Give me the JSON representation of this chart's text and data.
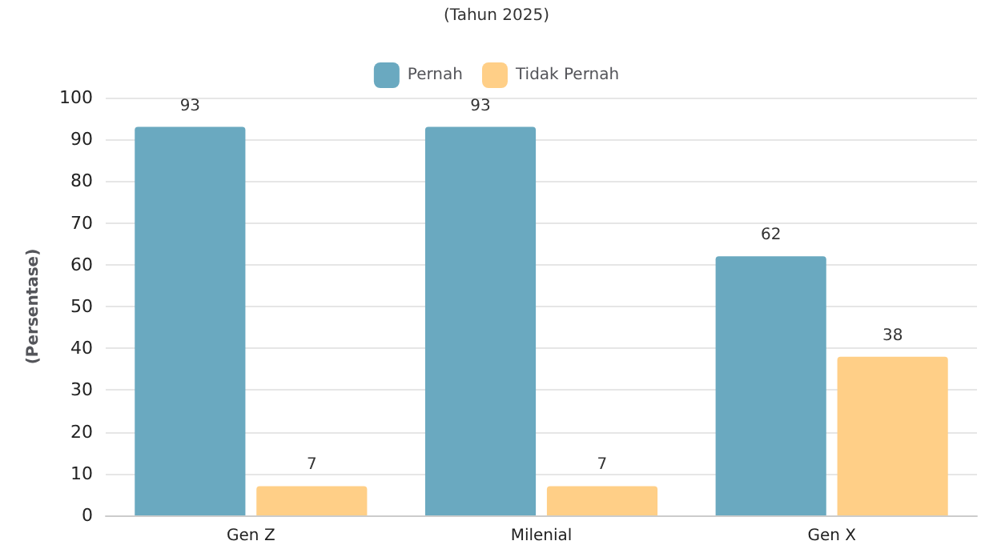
{
  "chart_data": {
    "type": "bar",
    "subtitle": "(Tahun 2025)",
    "ylabel": "(Persentase)",
    "categories": [
      "Gen Z",
      "Milenial",
      "Gen X"
    ],
    "series": [
      {
        "name": "Pernah",
        "color": "#6aa9c0",
        "values": [
          93,
          93,
          62
        ]
      },
      {
        "name": "Tidak Pernah",
        "color": "#ffcf87",
        "values": [
          7,
          7,
          38
        ]
      }
    ],
    "ylim": [
      0,
      100
    ],
    "yticks": [
      0,
      10,
      20,
      30,
      40,
      50,
      60,
      70,
      80,
      90,
      100
    ],
    "grid": "y",
    "legend": "top",
    "data_labels": true
  }
}
